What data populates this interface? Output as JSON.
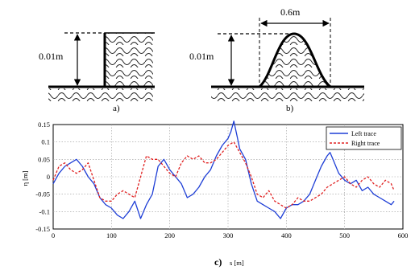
{
  "figure_a": {
    "height_label": "0.01m",
    "panel_label": "a)"
  },
  "figure_b": {
    "height_label": "0.01m",
    "width_label": "0.6m",
    "panel_label": "b)"
  },
  "chart_data": {
    "type": "line",
    "panel_label": "c)",
    "xlabel": "s [m]",
    "ylabel": "η [m]",
    "xlim": [
      0,
      600
    ],
    "ylim": [
      -0.15,
      0.15
    ],
    "xticks": [
      "0",
      "100",
      "200",
      "300",
      "400",
      "500",
      "600"
    ],
    "yticks": [
      "0.15",
      "0.1",
      "0.05",
      "0",
      "-0.05",
      "-0.1",
      "-0.15"
    ],
    "grid": true,
    "legend_position": "top-right",
    "series": [
      {
        "name": "Left trace",
        "color": "#1f3fd6",
        "style": "solid",
        "x": [
          0,
          10,
          20,
          30,
          40,
          50,
          60,
          70,
          80,
          90,
          100,
          110,
          120,
          130,
          140,
          150,
          160,
          170,
          180,
          190,
          200,
          210,
          220,
          230,
          240,
          250,
          260,
          270,
          280,
          290,
          300,
          305,
          310,
          315,
          320,
          330,
          340,
          350,
          360,
          370,
          380,
          390,
          400,
          410,
          420,
          430,
          440,
          450,
          460,
          470,
          475,
          480,
          490,
          500,
          510,
          520,
          530,
          540,
          550,
          560,
          570,
          580,
          585
        ],
        "y": [
          -0.02,
          0.01,
          0.03,
          0.04,
          0.05,
          0.03,
          0.0,
          -0.02,
          -0.06,
          -0.08,
          -0.09,
          -0.11,
          -0.12,
          -0.1,
          -0.07,
          -0.12,
          -0.08,
          -0.05,
          0.03,
          0.05,
          0.02,
          0.0,
          -0.02,
          -0.06,
          -0.05,
          -0.03,
          0.0,
          0.02,
          0.06,
          0.09,
          0.11,
          0.13,
          0.16,
          0.12,
          0.08,
          0.05,
          -0.02,
          -0.07,
          -0.08,
          -0.09,
          -0.1,
          -0.12,
          -0.09,
          -0.08,
          -0.08,
          -0.07,
          -0.05,
          -0.01,
          0.03,
          0.06,
          0.07,
          0.05,
          0.01,
          -0.01,
          -0.02,
          -0.01,
          -0.04,
          -0.03,
          -0.05,
          -0.06,
          -0.07,
          -0.08,
          -0.07
        ]
      },
      {
        "name": "Right trace",
        "color": "#e02020",
        "style": "dashed",
        "x": [
          0,
          10,
          20,
          30,
          40,
          50,
          60,
          70,
          80,
          90,
          100,
          110,
          120,
          130,
          140,
          150,
          160,
          170,
          180,
          190,
          200,
          210,
          220,
          230,
          240,
          250,
          260,
          270,
          280,
          290,
          300,
          310,
          320,
          330,
          340,
          350,
          360,
          370,
          380,
          390,
          400,
          410,
          420,
          430,
          440,
          450,
          460,
          470,
          480,
          490,
          500,
          510,
          520,
          530,
          540,
          550,
          560,
          570,
          580,
          585
        ],
        "y": [
          -0.01,
          0.03,
          0.04,
          0.02,
          0.01,
          0.02,
          0.04,
          -0.01,
          -0.06,
          -0.07,
          -0.07,
          -0.05,
          -0.04,
          -0.05,
          -0.06,
          0.0,
          0.06,
          0.05,
          0.05,
          0.03,
          0.01,
          0.0,
          0.04,
          0.06,
          0.05,
          0.06,
          0.04,
          0.04,
          0.05,
          0.07,
          0.09,
          0.1,
          0.07,
          0.04,
          0.0,
          -0.05,
          -0.06,
          -0.04,
          -0.07,
          -0.08,
          -0.09,
          -0.08,
          -0.06,
          -0.07,
          -0.07,
          -0.06,
          -0.05,
          -0.03,
          -0.02,
          -0.01,
          0.0,
          -0.02,
          -0.03,
          -0.01,
          0.0,
          -0.02,
          -0.03,
          -0.01,
          -0.02,
          -0.04
        ]
      }
    ]
  }
}
